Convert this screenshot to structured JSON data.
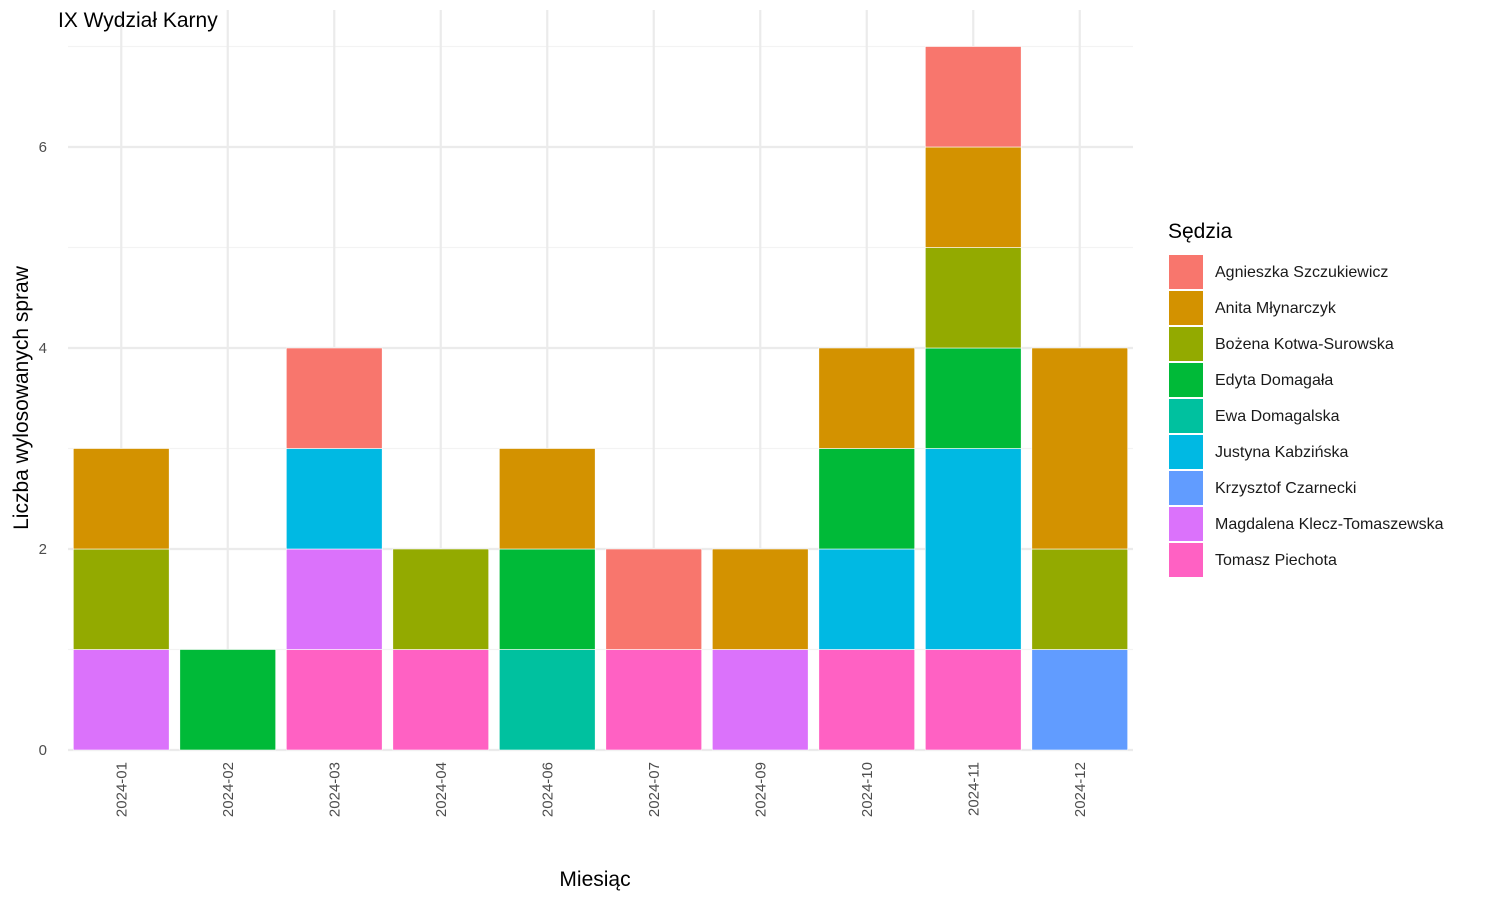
{
  "chart_data": {
    "type": "bar",
    "stacked": true,
    "title": "IX Wydział Karny",
    "xlabel": "Miesiąc",
    "ylabel": "Liczba wylosowanych spraw",
    "ylim": [
      0,
      7
    ],
    "yticks": [
      0,
      2,
      4,
      6
    ],
    "grid": true,
    "legend_title": "Sędzia",
    "legend_position": "right",
    "categories": [
      "2024-01",
      "2024-02",
      "2024-03",
      "2024-04",
      "2024-06",
      "2024-07",
      "2024-09",
      "2024-10",
      "2024-11",
      "2024-12"
    ],
    "series": [
      {
        "name": "Agnieszka Szczukiewicz",
        "color": "#F8766D",
        "values": [
          0,
          0,
          1,
          0,
          0,
          1,
          0,
          0,
          1,
          0
        ]
      },
      {
        "name": "Anita Młynarczyk",
        "color": "#D39200",
        "values": [
          1,
          0,
          0,
          0,
          1,
          0,
          1,
          1,
          1,
          2
        ]
      },
      {
        "name": "Bożena Kotwa-Surowska",
        "color": "#93AA00",
        "values": [
          1,
          0,
          0,
          1,
          0,
          0,
          0,
          0,
          1,
          1
        ]
      },
      {
        "name": "Edyta Domagała",
        "color": "#00BA38",
        "values": [
          0,
          1,
          0,
          0,
          1,
          0,
          0,
          1,
          1,
          0
        ]
      },
      {
        "name": "Ewa Domagalska",
        "color": "#00C19F",
        "values": [
          0,
          0,
          0,
          0,
          1,
          0,
          0,
          0,
          0,
          0
        ]
      },
      {
        "name": "Justyna Kabzińska",
        "color": "#00B9E3",
        "values": [
          0,
          0,
          1,
          0,
          0,
          0,
          0,
          1,
          2,
          0
        ]
      },
      {
        "name": "Krzysztof Czarnecki",
        "color": "#619CFF",
        "values": [
          0,
          0,
          0,
          0,
          0,
          0,
          0,
          0,
          0,
          1
        ]
      },
      {
        "name": "Magdalena Klecz-Tomaszewska",
        "color": "#DB72FB",
        "values": [
          1,
          0,
          1,
          0,
          0,
          0,
          1,
          0,
          0,
          0
        ]
      },
      {
        "name": "Tomasz Piechota",
        "color": "#FF61C3",
        "values": [
          0,
          0,
          1,
          1,
          0,
          1,
          0,
          1,
          1,
          0
        ]
      }
    ]
  }
}
